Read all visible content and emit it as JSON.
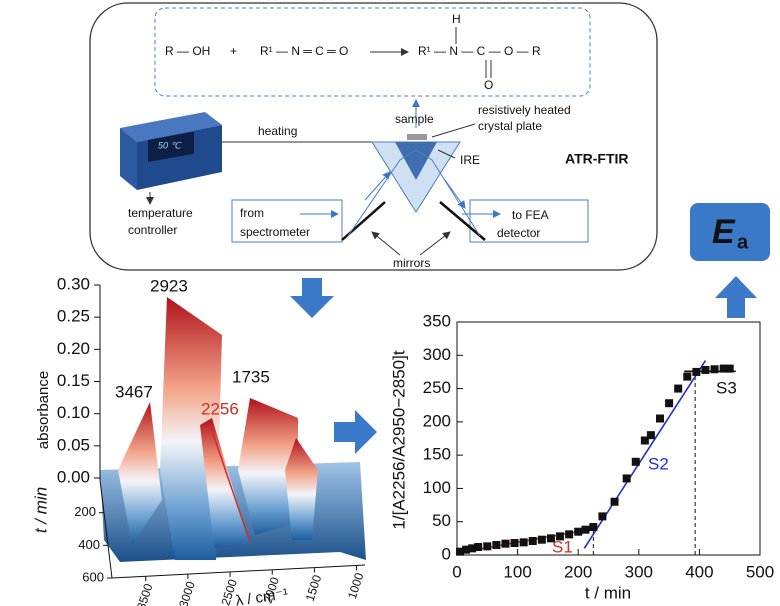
{
  "diagram": {
    "reaction": {
      "reactant1": "R — OH",
      "plus": "+",
      "reactant2": "R¹ — N ═ C ═ O",
      "product": "R¹ — N — C — O — R",
      "product_h": "H",
      "product_o": "O"
    },
    "labels": {
      "sample": "sample",
      "crystal_plate": [
        "resistively heated",
        "crystal plate"
      ],
      "heating": "heating",
      "ire": "IRE",
      "technique": "ATR-FTIR",
      "temperature": "50 ℃",
      "controller": [
        "temperature",
        "controller"
      ],
      "source": [
        "from",
        "spectrometer"
      ],
      "detector": [
        "to FEA",
        "detector"
      ],
      "mirrors": "mirrors"
    },
    "result": {
      "symbol": "E",
      "subscript": "a"
    }
  },
  "chart_data": [
    {
      "type": "surface",
      "zlabel": "absorbance",
      "zlim": [
        0,
        0.3
      ],
      "zticks": [
        {
          "value": 0.3,
          "label": "0.30"
        },
        0.25,
        {
          "value": 0.2,
          "label": "0.20"
        },
        0.15,
        {
          "value": 0.1,
          "label": "0.10"
        },
        0.05,
        {
          "value": 0,
          "label": "0.00"
        }
      ],
      "ylabel": "t / min",
      "ylim": [
        0,
        600
      ],
      "yticks": [
        200,
        400,
        600
      ],
      "xlabel": "λ / cm⁻¹",
      "xlim": [
        3900,
        900
      ],
      "xticks": [
        3500,
        3000,
        2500,
        2000,
        1500,
        1000
      ],
      "annotations": [
        "3467",
        "2923",
        "2256",
        "1735"
      ],
      "annotation_colors": [
        "#111111",
        "#111111",
        "#d42a2a",
        "#111111"
      ]
    },
    {
      "type": "scatter",
      "xlabel": "t / min",
      "ylabel": "1/[A2256/A2950−2850]t",
      "xlim": [
        0,
        500
      ],
      "ylim": [
        0,
        350
      ],
      "xticks": [
        0,
        100,
        200,
        300,
        400,
        500
      ],
      "yticks": [
        0,
        50,
        100,
        150,
        200,
        250,
        300,
        350
      ],
      "series": [
        {
          "color": "#111111",
          "x": [
            5,
            15,
            25,
            35,
            50,
            65,
            80,
            95,
            110,
            125,
            140,
            155,
            170,
            185,
            200,
            212,
            225,
            240,
            260,
            280,
            295,
            310,
            320,
            335,
            350,
            365,
            380,
            395,
            410,
            425,
            440,
            450
          ],
          "values": [
            5,
            8,
            10,
            12,
            13,
            15,
            17,
            18,
            19,
            21,
            23,
            25,
            28,
            31,
            35,
            38,
            42,
            58,
            80,
            115,
            140,
            172,
            180,
            205,
            228,
            250,
            268,
            275,
            278,
            279,
            280,
            280
          ]
        }
      ],
      "fits": [
        {
          "name": "S1",
          "color": "#d42a2a",
          "x": [
            0,
            230
          ],
          "values": [
            3,
            40
          ]
        },
        {
          "name": "S2",
          "color": "#2030d0",
          "x": [
            210,
            410
          ],
          "values": [
            10,
            292
          ]
        },
        {
          "name": "S3",
          "color": "#111111",
          "x": [
            375,
            460
          ],
          "values": [
            276,
            276
          ]
        }
      ],
      "dividers": [
        {
          "x": 225,
          "y": 42
        },
        {
          "x": 393,
          "y": 277
        }
      ]
    }
  ]
}
